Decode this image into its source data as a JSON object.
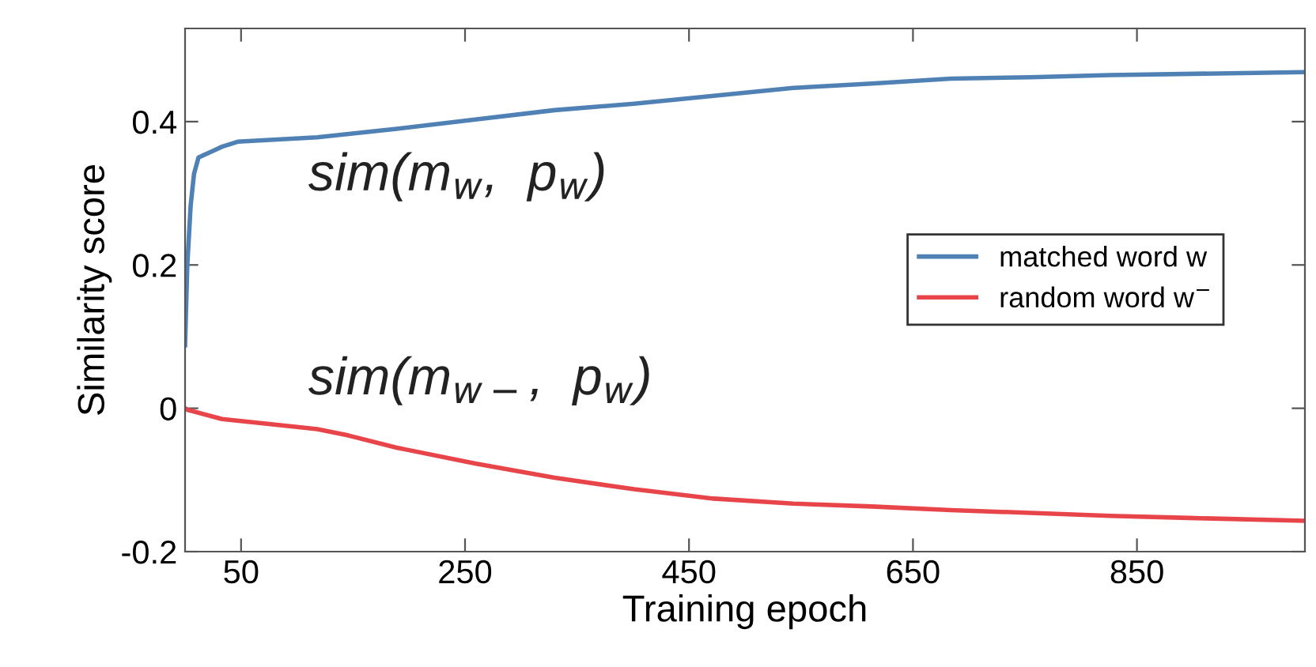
{
  "chart_data": {
    "type": "line",
    "xlabel": "Training epoch",
    "ylabel": "Similarity score",
    "xlim": [
      0,
      1000
    ],
    "ylim": [
      -0.2,
      0.53
    ],
    "xticks": [
      50,
      250,
      450,
      650,
      850
    ],
    "yticks": [
      {
        "value": -0.2,
        "label": "-0.2"
      },
      0,
      0.2,
      0.4
    ],
    "grid": false,
    "legend": "right",
    "line_style": "solid",
    "marker": "none",
    "annotations": [
      "sim(m$_{w}$,  p$_{w}$)",
      "sim(m$_{w−}$,  p$_{w}$)"
    ],
    "series": [
      {
        "name": "matched word w",
        "color": "#4f81b5",
        "x": [
          0,
          2,
          5,
          8,
          12,
          26,
          33,
          47,
          118,
          189,
          259,
          330,
          401,
          472,
          543,
          613,
          684,
          755,
          826,
          1000
        ],
        "values": [
          0.088,
          0.2,
          0.283,
          0.327,
          0.35,
          0.36,
          0.365,
          0.372,
          0.378,
          0.39,
          0.403,
          0.416,
          0.425,
          0.436,
          0.447,
          0.453,
          0.46,
          0.462,
          0.465,
          0.469
        ]
      },
      {
        "name": "random word w$^{−}$",
        "color": "#e8454a",
        "x": [
          0,
          2,
          33,
          75,
          118,
          146,
          189,
          259,
          330,
          401,
          472,
          543,
          613,
          684,
          755,
          826,
          896,
          1000
        ],
        "values": [
          0.0,
          -0.002,
          -0.015,
          -0.022,
          -0.029,
          -0.038,
          -0.055,
          -0.077,
          -0.097,
          -0.113,
          -0.126,
          -0.133,
          -0.137,
          -0.142,
          -0.146,
          -0.15,
          -0.153,
          -0.157
        ]
      }
    ]
  }
}
